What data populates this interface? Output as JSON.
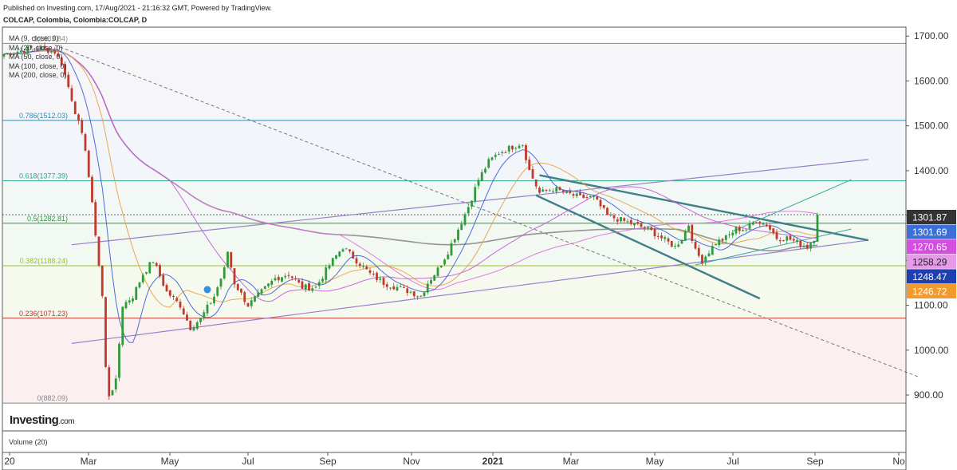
{
  "header": {
    "published": "Published on Investing.com, 17/Aug/2021 - 21:16:32 GMT, Powered by TradingView.",
    "symbol": "COLCAP, Colombia, Colombia:COLCAP, D"
  },
  "logo": {
    "main": "Investing",
    "suffix": ".com"
  },
  "ma_legend": [
    "MA (9, close, 0)",
    "MA (20, close, 0)",
    "MA (50, close, 0)",
    "MA (100, close, 0)",
    "MA (200, close, 0)"
  ],
  "volume_label": "Volume (20)",
  "colors": {
    "up": "#2e9a3a",
    "down": "#c0392b",
    "ma9": "#3d5bd9",
    "ma20": "#e8a045",
    "ma50": "#c45ad6",
    "ma100": "#e06ce0",
    "ma200": "#8a8a8a",
    "channel": "#9a7ec8",
    "trend": "#3f7f86"
  },
  "chart_data": {
    "type": "candlestick",
    "ylim": [
      820,
      1720
    ],
    "y_ticks": [
      "900.00",
      "1000.00",
      "1100.00",
      "1200.00",
      "1300.00",
      "1400.00",
      "1500.00",
      "1600.00",
      "1700.00"
    ],
    "x_ticks": [
      "20",
      "Mar",
      "May",
      "Jul",
      "Sep",
      "Nov",
      "2021",
      "Mar",
      "May",
      "Jul",
      "Sep",
      "No"
    ],
    "fib_levels": [
      {
        "label": "0(882.09)",
        "value": 882.09,
        "color": "#888888"
      },
      {
        "label": "0.236(1071.23)",
        "value": 1071.23,
        "color": "#c0392b"
      },
      {
        "label": "0.382(1188.24)",
        "value": 1188.24,
        "color": "#9bbf2a"
      },
      {
        "label": "0.5(1282.81)",
        "value": 1282.81,
        "color": "#2e9a3a"
      },
      {
        "label": "0.618(1377.39)",
        "value": 1377.39,
        "color": "#2aa88a"
      },
      {
        "label": "0.786(1512.03)",
        "value": 1512.03,
        "color": "#2a8ec0"
      },
      {
        "label": "1(1683.84)",
        "value": 1683.84,
        "color": "#888888"
      }
    ],
    "price_badges": [
      {
        "value": "1301.87",
        "bg": "#333333",
        "fg": "#ffffff"
      },
      {
        "value": "1301.69",
        "bg": "#3d6fd9",
        "fg": "#ffffff"
      },
      {
        "value": "1270.65",
        "bg": "#d44fe0",
        "fg": "#ffffff"
      },
      {
        "value": "1258.29",
        "bg": "#e59ae8",
        "fg": "#222222"
      },
      {
        "value": "1248.47",
        "bg": "#1f3fb0",
        "fg": "#ffffff"
      },
      {
        "value": "1246.72",
        "bg": "#f29a2e",
        "fg": "#ffffff"
      }
    ],
    "close_anchors": [
      [
        0,
        1660
      ],
      [
        10,
        1675
      ],
      [
        15,
        1665
      ],
      [
        17,
        1640
      ],
      [
        20,
        1560
      ],
      [
        24,
        1450
      ],
      [
        27,
        1260
      ],
      [
        29,
        1120
      ],
      [
        30,
        960
      ],
      [
        31,
        900
      ],
      [
        33,
        930
      ],
      [
        35,
        1100
      ],
      [
        38,
        1120
      ],
      [
        41,
        1170
      ],
      [
        44,
        1200
      ],
      [
        48,
        1130
      ],
      [
        52,
        1100
      ],
      [
        55,
        1050
      ],
      [
        58,
        1070
      ],
      [
        62,
        1120
      ],
      [
        65,
        1180
      ],
      [
        66,
        1220
      ],
      [
        68,
        1150
      ],
      [
        72,
        1100
      ],
      [
        76,
        1130
      ],
      [
        80,
        1160
      ],
      [
        84,
        1170
      ],
      [
        88,
        1140
      ],
      [
        92,
        1140
      ],
      [
        96,
        1190
      ],
      [
        100,
        1230
      ],
      [
        104,
        1200
      ],
      [
        108,
        1170
      ],
      [
        112,
        1150
      ],
      [
        116,
        1140
      ],
      [
        120,
        1130
      ],
      [
        123,
        1120
      ],
      [
        125,
        1150
      ],
      [
        128,
        1180
      ],
      [
        131,
        1220
      ],
      [
        134,
        1270
      ],
      [
        137,
        1320
      ],
      [
        140,
        1380
      ],
      [
        143,
        1420
      ],
      [
        146,
        1440
      ],
      [
        149,
        1450
      ],
      [
        152,
        1460
      ],
      [
        153,
        1460
      ],
      [
        155,
        1400
      ],
      [
        158,
        1350
      ],
      [
        162,
        1360
      ],
      [
        166,
        1350
      ],
      [
        170,
        1340
      ],
      [
        174,
        1340
      ],
      [
        178,
        1300
      ],
      [
        182,
        1290
      ],
      [
        186,
        1280
      ],
      [
        190,
        1270
      ],
      [
        194,
        1250
      ],
      [
        198,
        1230
      ],
      [
        200,
        1250
      ],
      [
        202,
        1280
      ],
      [
        204,
        1220
      ],
      [
        206,
        1200
      ],
      [
        208,
        1220
      ],
      [
        210,
        1240
      ],
      [
        213,
        1250
      ],
      [
        216,
        1270
      ],
      [
        219,
        1270
      ],
      [
        222,
        1290
      ],
      [
        225,
        1280
      ],
      [
        228,
        1250
      ],
      [
        231,
        1250
      ],
      [
        234,
        1240
      ],
      [
        237,
        1230
      ],
      [
        239,
        1250
      ],
      [
        240,
        1301.87
      ]
    ],
    "trend_lines": [
      {
        "from": [
          20,
          1015
        ],
        "to": [
          255,
          1245
        ],
        "kind": "channel"
      },
      {
        "from": [
          20,
          1235
        ],
        "to": [
          255,
          1425
        ],
        "kind": "channel"
      },
      {
        "from": [
          15,
          1680
        ],
        "to": [
          270,
          940
        ],
        "kind": "dashed"
      },
      {
        "from": [
          158,
          1390
        ],
        "to": [
          255,
          1245
        ],
        "kind": "trend"
      },
      {
        "from": [
          157,
          1345
        ],
        "to": [
          223,
          1115
        ],
        "kind": "trend"
      },
      {
        "from": [
          204,
          1190
        ],
        "to": [
          250,
          1270
        ],
        "kind": "thin"
      },
      {
        "from": [
          215,
          1265
        ],
        "to": [
          250,
          1380
        ],
        "kind": "thin"
      }
    ]
  }
}
